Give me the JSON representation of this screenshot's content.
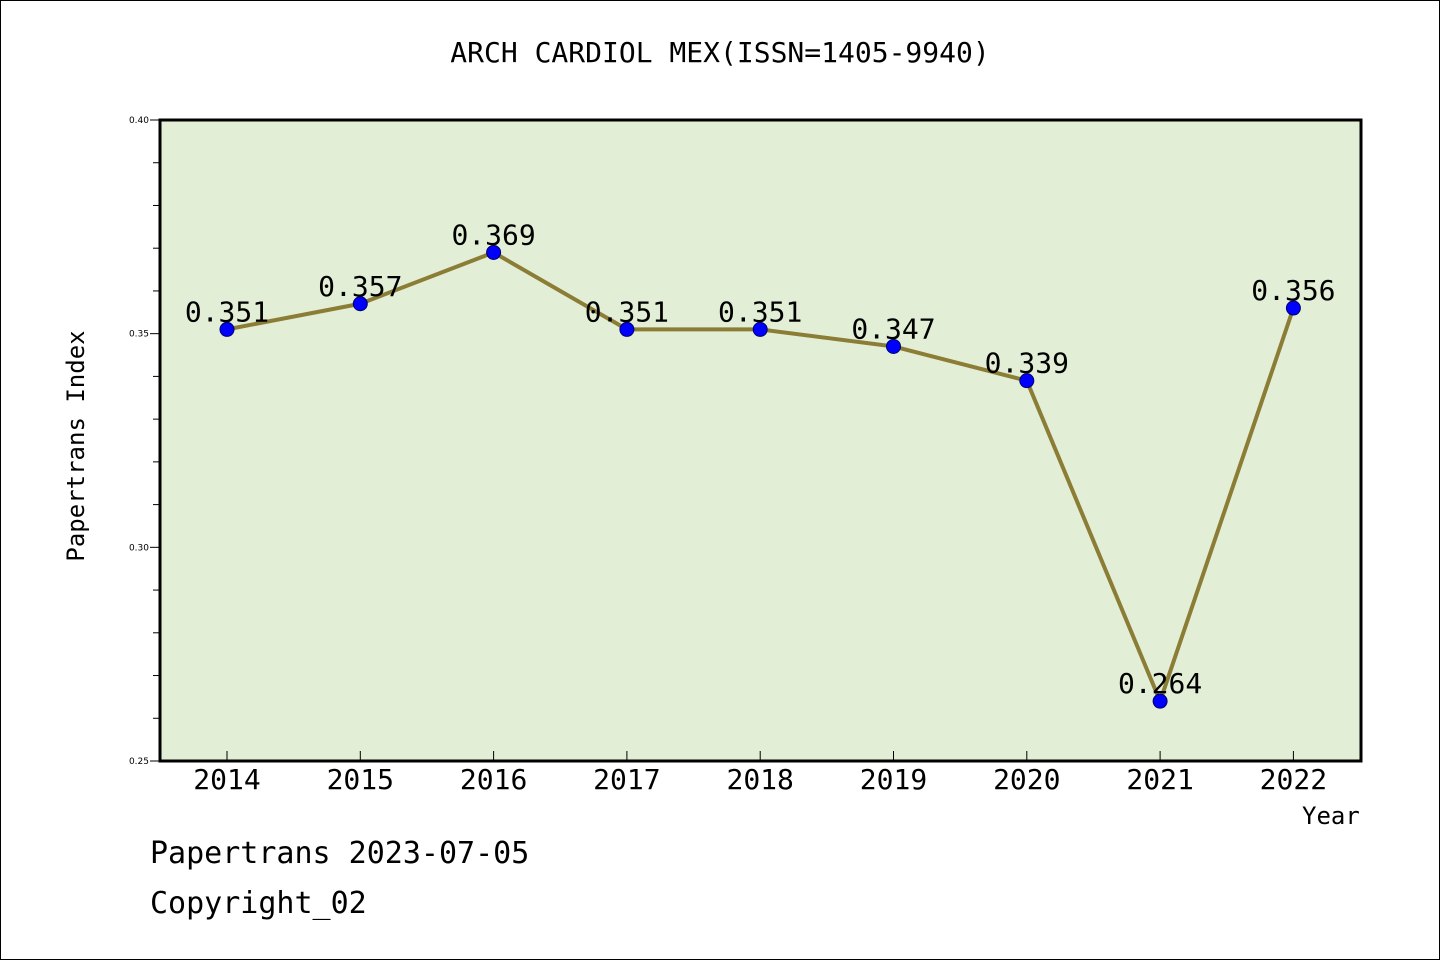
{
  "title": "ARCH CARDIOL MEX(ISSN=1405-9940)",
  "footer": {
    "date_line": "Papertrans 2023-07-05",
    "copyright_line": "Copyright_02"
  },
  "colors": {
    "plot_background": "#e2efd6",
    "line": "#8b7d35",
    "marker": "#0000ff"
  },
  "chart_data": {
    "type": "line",
    "title": "ARCH CARDIOL MEX(ISSN=1405-9940)",
    "xlabel": "Year",
    "ylabel": "Papertrans Index",
    "categories": [
      "2014",
      "2015",
      "2016",
      "2017",
      "2018",
      "2019",
      "2020",
      "2021",
      "2022"
    ],
    "values": [
      0.351,
      0.357,
      0.369,
      0.351,
      0.351,
      0.347,
      0.339,
      0.264,
      0.356
    ],
    "data_labels": [
      "0.351",
      "0.357",
      "0.369",
      "0.351",
      "0.351",
      "0.347",
      "0.339",
      "0.264",
      "0.356"
    ],
    "ylim": [
      0.25,
      0.4
    ],
    "y_ticks": [
      "0.25",
      "0.30",
      "0.35",
      "0.40"
    ],
    "grid": false,
    "legend": "none"
  }
}
